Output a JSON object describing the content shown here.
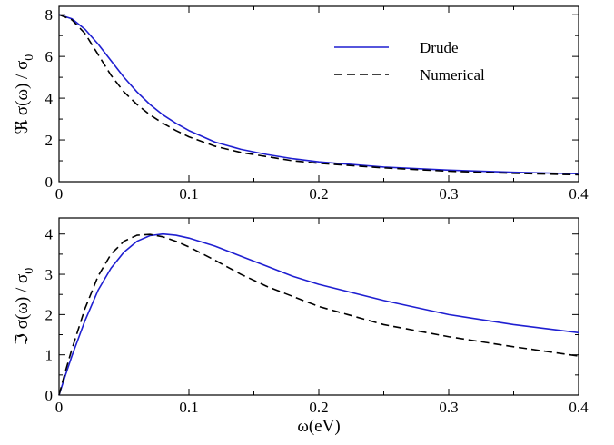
{
  "chart_data": [
    {
      "type": "line",
      "title": "",
      "xlabel": "",
      "ylabel": "ℜ σ(ω) / σ",
      "ylabel_sub": "0",
      "xlim": [
        0,
        0.4
      ],
      "ylim": [
        0,
        8.4
      ],
      "xticks": [
        0,
        0.1,
        0.2,
        0.3,
        0.4
      ],
      "xtick_labels": [
        "0",
        "0.1",
        "0.2",
        "0.3",
        "0.4"
      ],
      "yticks": [
        0,
        2,
        4,
        6,
        8
      ],
      "ytick_labels": [
        "0",
        "2",
        "4",
        "6",
        "8"
      ],
      "legend_position": "top-right",
      "series": [
        {
          "name": "Drude",
          "color": "#1f1fd1",
          "dash": "solid",
          "x": [
            0,
            0.01,
            0.02,
            0.03,
            0.04,
            0.05,
            0.06,
            0.07,
            0.08,
            0.09,
            0.1,
            0.12,
            0.14,
            0.16,
            0.18,
            0.2,
            0.25,
            0.3,
            0.35,
            0.4
          ],
          "y": [
            8.0,
            7.8,
            7.3,
            6.6,
            5.8,
            5.0,
            4.3,
            3.7,
            3.2,
            2.8,
            2.45,
            1.9,
            1.55,
            1.3,
            1.1,
            0.95,
            0.7,
            0.55,
            0.45,
            0.38
          ]
        },
        {
          "name": "Numerical",
          "color": "#000000",
          "dash": "dashed",
          "x": [
            0,
            0.01,
            0.02,
            0.03,
            0.04,
            0.05,
            0.06,
            0.07,
            0.08,
            0.09,
            0.1,
            0.12,
            0.14,
            0.16,
            0.18,
            0.2,
            0.25,
            0.3,
            0.35,
            0.4
          ],
          "y": [
            8.0,
            7.75,
            7.1,
            6.1,
            5.1,
            4.3,
            3.7,
            3.2,
            2.8,
            2.45,
            2.15,
            1.7,
            1.4,
            1.2,
            1.0,
            0.88,
            0.66,
            0.5,
            0.4,
            0.33
          ]
        }
      ],
      "legend": [
        {
          "label": "Drude",
          "color": "#1f1fd1",
          "dash": "solid"
        },
        {
          "label": "Numerical",
          "color": "#000000",
          "dash": "dashed"
        }
      ]
    },
    {
      "type": "line",
      "title": "",
      "xlabel": "ω(eV)",
      "ylabel": "ℑ σ(ω) / σ",
      "ylabel_sub": "0",
      "xlim": [
        0,
        0.4
      ],
      "ylim": [
        0,
        4.4
      ],
      "xticks": [
        0,
        0.1,
        0.2,
        0.3,
        0.4
      ],
      "xtick_labels": [
        "0",
        "0.1",
        "0.2",
        "0.3",
        "0.4"
      ],
      "yticks": [
        0,
        1,
        2,
        3,
        4
      ],
      "ytick_labels": [
        "0",
        "1",
        "2",
        "3",
        "4"
      ],
      "series": [
        {
          "name": "Drude",
          "color": "#1f1fd1",
          "dash": "solid",
          "x": [
            0,
            0.005,
            0.01,
            0.02,
            0.03,
            0.04,
            0.05,
            0.06,
            0.07,
            0.08,
            0.09,
            0.1,
            0.12,
            0.14,
            0.16,
            0.18,
            0.2,
            0.25,
            0.3,
            0.35,
            0.4
          ],
          "y": [
            0,
            0.5,
            0.98,
            1.85,
            2.6,
            3.15,
            3.55,
            3.82,
            3.96,
            4.0,
            3.97,
            3.9,
            3.7,
            3.45,
            3.2,
            2.95,
            2.75,
            2.35,
            2.0,
            1.75,
            1.55
          ]
        },
        {
          "name": "Numerical",
          "color": "#000000",
          "dash": "dashed",
          "x": [
            0,
            0.005,
            0.01,
            0.02,
            0.03,
            0.04,
            0.05,
            0.06,
            0.07,
            0.08,
            0.09,
            0.1,
            0.12,
            0.14,
            0.16,
            0.18,
            0.2,
            0.25,
            0.3,
            0.35,
            0.4
          ],
          "y": [
            0,
            0.6,
            1.15,
            2.15,
            2.95,
            3.5,
            3.82,
            3.97,
            3.99,
            3.93,
            3.82,
            3.68,
            3.35,
            3.0,
            2.7,
            2.45,
            2.2,
            1.75,
            1.45,
            1.2,
            0.97
          ]
        }
      ]
    }
  ]
}
